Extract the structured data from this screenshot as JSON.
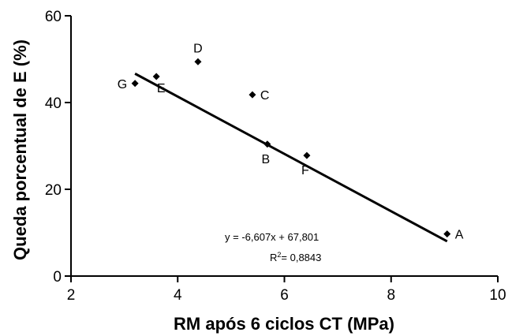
{
  "chart_data": {
    "type": "scatter",
    "title": "",
    "xlabel": "RM após 6 ciclos CT (MPa)",
    "ylabel": "Queda porcentual de E (%)",
    "xlim": [
      2,
      10
    ],
    "ylim": [
      0,
      60
    ],
    "x_ticks": [
      "2",
      "4",
      "6",
      "8",
      "10"
    ],
    "y_ticks": [
      "0",
      "20",
      "40",
      "60"
    ],
    "grid": false,
    "legend": "none",
    "points": [
      {
        "label": "A",
        "x": 9.05,
        "y": 9.7,
        "label_pos": "right"
      },
      {
        "label": "B",
        "x": 5.68,
        "y": 30.4,
        "label_pos": "below"
      },
      {
        "label": "C",
        "x": 5.4,
        "y": 41.8,
        "label_pos": "right"
      },
      {
        "label": "D",
        "x": 4.38,
        "y": 49.4,
        "label_pos": "above"
      },
      {
        "label": "E",
        "x": 3.6,
        "y": 46.0,
        "label_pos": "below-right"
      },
      {
        "label": "F",
        "x": 6.42,
        "y": 27.8,
        "label_pos": "below"
      },
      {
        "label": "G",
        "x": 3.2,
        "y": 44.4,
        "label_pos": "left"
      }
    ],
    "trendline": {
      "type": "linear",
      "slope": -6.607,
      "intercept": 67.801,
      "x_range": [
        3.2,
        9.05
      ]
    },
    "annotations": {
      "equation": "y = -6,607x + 67,801",
      "r2_prefix": "R",
      "r2_sup": "2",
      "r2_value": "= 0,8843"
    },
    "marker_color": "#000000",
    "line_color": "#000000"
  }
}
